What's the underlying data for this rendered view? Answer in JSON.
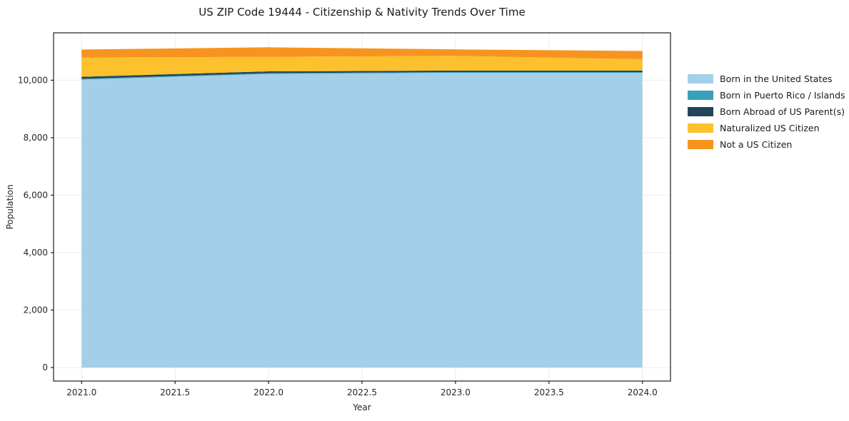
{
  "chart_data": {
    "type": "area",
    "stacked": true,
    "title": "US ZIP Code 19444 - Citizenship & Nativity Trends Over Time",
    "xlabel": "Year",
    "ylabel": "Population",
    "x": [
      2021,
      2022,
      2023,
      2024
    ],
    "series": [
      {
        "name": "Born in the United States",
        "color": "#a3cfe8",
        "values": [
          10020,
          10220,
          10260,
          10260
        ]
      },
      {
        "name": "Born in Puerto Rico / Islands",
        "color": "#3aa0ba",
        "values": [
          30,
          30,
          25,
          25
        ]
      },
      {
        "name": "Born Abroad of US Parent(s)",
        "color": "#23455a",
        "values": [
          70,
          60,
          50,
          50
        ]
      },
      {
        "name": "Naturalized US Citizen",
        "color": "#fcc12d",
        "values": [
          670,
          505,
          510,
          395
        ]
      },
      {
        "name": "Not a US Citizen",
        "color": "#f7941f",
        "values": [
          280,
          330,
          230,
          290
        ]
      }
    ],
    "totals": [
      11070,
      11145,
      11075,
      11020
    ],
    "xlim": [
      2020.85,
      2024.15
    ],
    "ylim": [
      -470,
      11650
    ],
    "xticks": [
      2021.0,
      2021.5,
      2022.0,
      2022.5,
      2023.0,
      2023.5,
      2024.0
    ],
    "xtick_labels": [
      "2021.0",
      "2021.5",
      "2022.0",
      "2022.5",
      "2023.0",
      "2023.5",
      "2024.0"
    ],
    "yticks": [
      0,
      2000,
      4000,
      6000,
      8000,
      10000
    ],
    "ytick_labels": [
      "0",
      "2,000",
      "4,000",
      "6,000",
      "8,000",
      "10,000"
    ],
    "grid": true,
    "legend_position": "outside-right",
    "colors": {
      "grid": "#ececec",
      "spine": "#1f1f1f",
      "text": "#262626",
      "title_text": "#1a1a1a",
      "background": "#ffffff"
    }
  }
}
